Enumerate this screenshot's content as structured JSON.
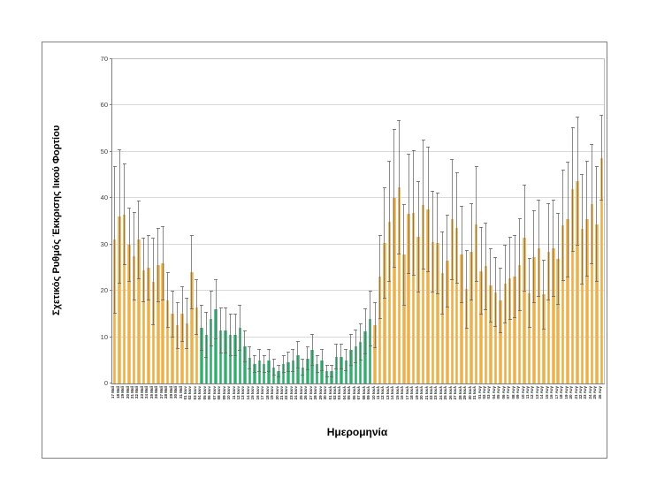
{
  "chart_data": {
    "type": "bar",
    "title": "",
    "xlabel": "Ημερομηνία",
    "ylabel": "Σχετικός Ρυθμός Έκκρισης Ιικού Φορτίου",
    "ylim": [
      0,
      70
    ],
    "ytick_step": 10,
    "yticks": [
      0,
      10,
      20,
      30,
      40,
      50,
      60,
      70
    ],
    "grid": true,
    "legend": "none",
    "error_bars": true,
    "bar_color_default": "#E9AF4B",
    "bar_color_highlight": "#2FA96A",
    "error_bar_color": "#696969",
    "highlight_range_1based": [
      19,
      54
    ],
    "categories": [
      "17 Μαΐ",
      "18 Μαΐ",
      "19 Μαΐ",
      "20 Μαΐ",
      "21 Μαΐ",
      "22 Μαΐ",
      "23 Μαΐ",
      "24 Μαΐ",
      "25 Μαΐ",
      "26 Μαΐ",
      "27 Μαΐ",
      "28 Μαΐ",
      "29 Μαΐ",
      "30 Μαΐ",
      "31 Μαΐ",
      "01 Ιουν",
      "02 Ιουν",
      "03 Ιουν",
      "04 Ιουν",
      "05 Ιουν",
      "06 Ιουν",
      "07 Ιουν",
      "08 Ιουν",
      "09 Ιουν",
      "10 Ιουν",
      "11 Ιουν",
      "12 Ιουν",
      "13 Ιουν",
      "14 Ιουν",
      "15 Ιουν",
      "16 Ιουν",
      "17 Ιουν",
      "18 Ιουν",
      "19 Ιουν",
      "20 Ιουν",
      "21 Ιουν",
      "22 Ιουν",
      "23 Ιουν",
      "24 Ιουν",
      "25 Ιουν",
      "26 Ιουν",
      "27 Ιουν",
      "28 Ιουν",
      "29 Ιουν",
      "30 Ιουν",
      "01 Ιουλ",
      "02 Ιουλ",
      "03 Ιουλ",
      "04 Ιουλ",
      "05 Ιουλ",
      "06 Ιουλ",
      "07 Ιουλ",
      "08 Ιουλ",
      "09 Ιουλ",
      "10 Ιουλ",
      "11 Ιουλ",
      "12 Ιουλ",
      "13 Ιουλ",
      "14 Ιουλ",
      "15 Ιουλ",
      "16 Ιουλ",
      "17 Ιουλ",
      "18 Ιουλ",
      "19 Ιουλ",
      "20 Ιουλ",
      "21 Ιουλ",
      "22 Ιουλ",
      "23 Ιουλ",
      "24 Ιουλ",
      "25 Ιουλ",
      "26 Ιουλ",
      "27 Ιουλ",
      "28 Ιουλ",
      "29 Ιουλ",
      "30 Ιουλ",
      "31 Ιουλ",
      "01 Αυγ",
      "02 Αυγ",
      "03 Αυγ",
      "04 Αυγ",
      "05 Αυγ",
      "06 Αυγ",
      "07 Αυγ",
      "08 Αυγ",
      "09 Αυγ",
      "10 Αυγ",
      "11 Αυγ",
      "12 Αυγ",
      "13 Αυγ",
      "14 Αυγ",
      "15 Αυγ",
      "16 Αυγ",
      "17 Αυγ",
      "18 Αυγ",
      "19 Αυγ",
      "20 Αυγ",
      "21 Αυγ",
      "22 Αυγ",
      "23 Αυγ",
      "24 Αυγ",
      "25 Αυγ",
      "26 Αυγ"
    ],
    "values": [
      31,
      36,
      36.5,
      30,
      27.5,
      31,
      24.5,
      25,
      22,
      25.5,
      26,
      18,
      15,
      12.5,
      15,
      13,
      24,
      16.5,
      12,
      10.5,
      14,
      16,
      11.5,
      11.5,
      10.5,
      10.5,
      12,
      8,
      5.5,
      4.2,
      5,
      4.2,
      5,
      3.5,
      2.7,
      4.2,
      4.6,
      5,
      6.2,
      3.5,
      5.4,
      7.3,
      4.2,
      5,
      2.7,
      2.7,
      5.8,
      5.8,
      5,
      7.3,
      8,
      9,
      11.3,
      14,
      12.6,
      23,
      30.3,
      35,
      40,
      42.4,
      27.8,
      36.6,
      36.8,
      31.7,
      38.6,
      37.6,
      30.6,
      30.3,
      23.9,
      26.5,
      35.4,
      33.6,
      27.8,
      20.4,
      28.4,
      34.4,
      24.3,
      25.3,
      21.1,
      19.7,
      17.9,
      21.5,
      22.7,
      23.1,
      25.6,
      31.4,
      19.5,
      27.3,
      29.1,
      19.2,
      28.5,
      29.1,
      26.9,
      34.2,
      35.4,
      41.9,
      43.7,
      33.3,
      35.5,
      38.7,
      34.4,
      48.7
    ],
    "errors": [
      16,
      14.5,
      11,
      8,
      9.5,
      8.5,
      7,
      7,
      9.5,
      8,
      8,
      6,
      5,
      5,
      6,
      5.5,
      8,
      6,
      5,
      5,
      6,
      6.5,
      5,
      5,
      4.5,
      4.5,
      5,
      3.5,
      2.5,
      2,
      2.5,
      2,
      2.5,
      1.8,
      1.4,
      2,
      2.2,
      2.5,
      3,
      1.8,
      2.6,
      3.4,
      2,
      2.4,
      1.4,
      1.4,
      2.8,
      2.8,
      2.4,
      3.4,
      3.6,
      4,
      5,
      6,
      5,
      9,
      12,
      13,
      15,
      14.5,
      11,
      13,
      13.5,
      12,
      14,
      13.5,
      11,
      11,
      9,
      10,
      13,
      12,
      10.5,
      8.5,
      10.5,
      12.5,
      9.5,
      9.5,
      8,
      7.5,
      7,
      8.5,
      9,
      9,
      10,
      11.5,
      7.5,
      10,
      10.5,
      7.5,
      10.5,
      10.5,
      10,
      12,
      12.5,
      13.5,
      14,
      12,
      12.5,
      13,
      12.5,
      9.3
    ]
  }
}
